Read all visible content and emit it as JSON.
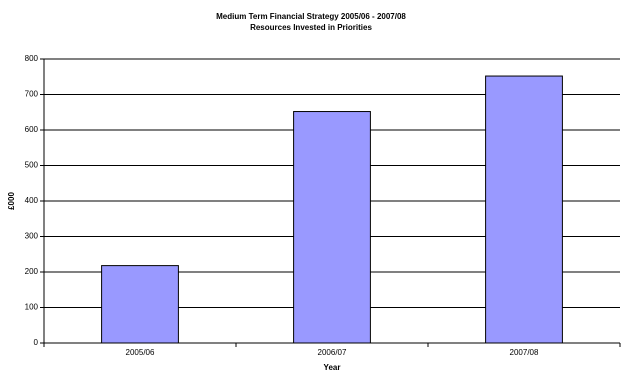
{
  "chart_data": {
    "type": "bar",
    "title": "Medium Term Financial Strategy 2005/06 - 2007/08",
    "subtitle": "Resources Invested in Priorities",
    "x_label": "Year",
    "y_label": "£000",
    "categories": [
      "2005/06",
      "2006/07",
      "2007/08"
    ],
    "values": [
      218,
      652,
      752
    ],
    "color": "#9999ff",
    "ylim": [
      0,
      800
    ],
    "yticks": [
      0,
      100,
      200,
      300,
      400,
      500,
      600,
      700,
      800
    ],
    "grid": true
  }
}
